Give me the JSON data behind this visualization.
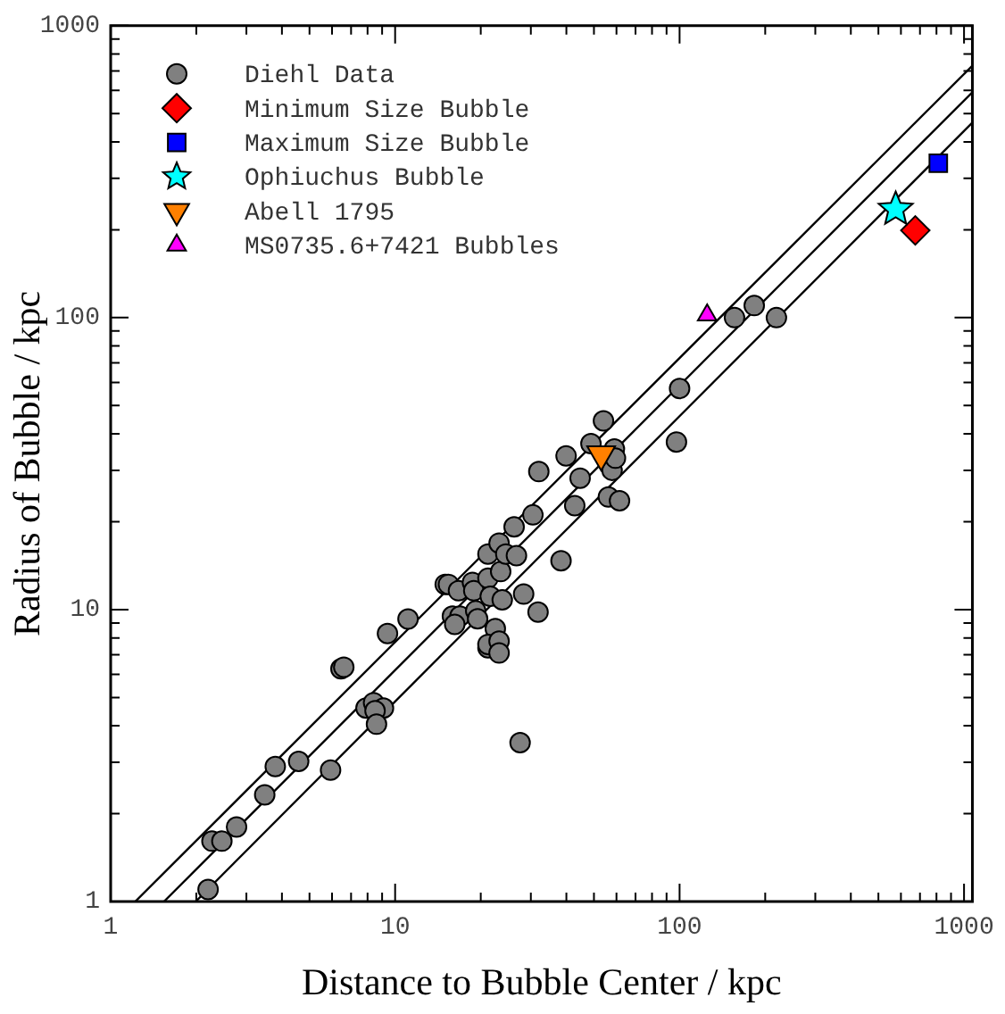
{
  "chart_data": {
    "type": "scatter",
    "xlabel": "Distance to Bubble Center / kpc",
    "ylabel": "Radius of Bubble / kpc",
    "log": "xy",
    "grid": false,
    "legend": "top left",
    "xlim": [
      1,
      1070
    ],
    "ylim": [
      1,
      1000
    ],
    "xticks": [
      1,
      {
        "value": 2,
        "label": null
      },
      {
        "value": 3,
        "label": null
      },
      {
        "value": 4,
        "label": null
      },
      {
        "value": 5,
        "label": null
      },
      {
        "value": 6,
        "label": null
      },
      {
        "value": 7,
        "label": null
      },
      {
        "value": 8,
        "label": null
      },
      {
        "value": 9,
        "label": null
      },
      10,
      {
        "value": 20,
        "label": null
      },
      {
        "value": 30,
        "label": null
      },
      {
        "value": 40,
        "label": null
      },
      {
        "value": 50,
        "label": null
      },
      {
        "value": 60,
        "label": null
      },
      {
        "value": 70,
        "label": null
      },
      {
        "value": 80,
        "label": null
      },
      {
        "value": 90,
        "label": null
      },
      100,
      {
        "value": 200,
        "label": null
      },
      {
        "value": 300,
        "label": null
      },
      {
        "value": 400,
        "label": null
      },
      {
        "value": 500,
        "label": null
      },
      {
        "value": 600,
        "label": null
      },
      {
        "value": 700,
        "label": null
      },
      {
        "value": 800,
        "label": null
      },
      {
        "value": 900,
        "label": null
      },
      1000
    ],
    "yticks": [
      1,
      {
        "value": 2,
        "label": null
      },
      {
        "value": 3,
        "label": null
      },
      {
        "value": 4,
        "label": null
      },
      {
        "value": 5,
        "label": null
      },
      {
        "value": 6,
        "label": null
      },
      {
        "value": 7,
        "label": null
      },
      {
        "value": 8,
        "label": null
      },
      {
        "value": 9,
        "label": null
      },
      10,
      {
        "value": 20,
        "label": null
      },
      {
        "value": 30,
        "label": null
      },
      {
        "value": 40,
        "label": null
      },
      {
        "value": 50,
        "label": null
      },
      {
        "value": 60,
        "label": null
      },
      {
        "value": 70,
        "label": null
      },
      {
        "value": 80,
        "label": null
      },
      {
        "value": 90,
        "label": null
      },
      100,
      {
        "value": 200,
        "label": null
      },
      {
        "value": 300,
        "label": null
      },
      {
        "value": 400,
        "label": null
      },
      {
        "value": 500,
        "label": null
      },
      {
        "value": 600,
        "label": null
      },
      {
        "value": 700,
        "label": null
      },
      {
        "value": 800,
        "label": null
      },
      {
        "value": 900,
        "label": null
      },
      1000
    ],
    "series": [
      {
        "type": "line",
        "color": "#000000",
        "x": [
          1.22,
          1070
        ],
        "values": [
          1,
          730
        ]
      },
      {
        "type": "line",
        "color": "#000000",
        "x": [
          1.54,
          1070
        ],
        "values": [
          1,
          592
        ]
      },
      {
        "type": "line",
        "color": "#000000",
        "x": [
          1.99,
          1070
        ],
        "values": [
          1,
          466
        ]
      },
      {
        "name": "Diehl Data",
        "color": "#808080",
        "marker": "circle",
        "x": [
          2.2,
          2.27,
          2.46,
          2.77,
          3.48,
          3.79,
          4.58,
          5.93,
          6.45,
          6.6,
          7.9,
          8.4,
          9.1,
          8.5,
          8.6,
          27.5,
          21.2,
          9.4,
          11.1,
          15.0,
          15.4,
          16.7,
          18.7,
          18.9,
          15.9,
          16.9,
          16.2,
          19.2,
          19.5,
          22.5,
          21.2,
          23.2,
          23.2,
          21.2,
          21.6,
          23.8,
          28.3,
          31.8,
          23.5,
          21.2,
          23.2,
          24.5,
          26.7,
          26.2,
          30.5,
          32,
          38.3,
          42.8,
          44.7,
          57.9,
          56.2,
          61.5,
          54,
          48.8,
          39.9,
          59,
          59.5,
          100,
          97.5,
          156,
          183,
          219
        ],
        "values": [
          1.1,
          1.61,
          1.61,
          1.8,
          2.32,
          2.9,
          3.02,
          2.82,
          6.27,
          6.35,
          4.6,
          4.8,
          4.6,
          4.5,
          4.05,
          3.5,
          7.4,
          8.28,
          9.28,
          12.2,
          12.2,
          11.6,
          12.4,
          11.6,
          9.5,
          9.5,
          8.9,
          9.9,
          9.3,
          8.6,
          7.6,
          7.8,
          7.1,
          12.8,
          11.1,
          10.8,
          11.3,
          9.8,
          13.5,
          15.5,
          16.9,
          15.5,
          15.3,
          19.2,
          21.1,
          29.7,
          14.7,
          22.7,
          28.2,
          30.0,
          24.3,
          23.6,
          44.3,
          37.0,
          33.6,
          35.5,
          33.0,
          57.2,
          37.5,
          100,
          110,
          100
        ]
      },
      {
        "name": "Minimum Size Bubble",
        "color": "#ff0000",
        "marker": "diamond",
        "x": [
          674
        ],
        "values": [
          199
        ]
      },
      {
        "name": "Maximum Size Bubble",
        "color": "#0000ff",
        "marker": "square",
        "x": [
          812
        ],
        "values": [
          338
        ]
      },
      {
        "name": "Ophiuchus Bubble",
        "color": "#00ffff",
        "marker": "star",
        "x": [
          575
        ],
        "values": [
          235
        ]
      },
      {
        "name": "Abell 1795",
        "color": "#ff8000",
        "marker": "triangle_down",
        "x": [
          53
        ],
        "values": [
          34
        ]
      },
      {
        "name": "MS0735.6+7421 Bubbles",
        "color": "#ff00ff",
        "marker": "triangle",
        "x": [
          125
        ],
        "values": [
          102
        ]
      }
    ]
  }
}
